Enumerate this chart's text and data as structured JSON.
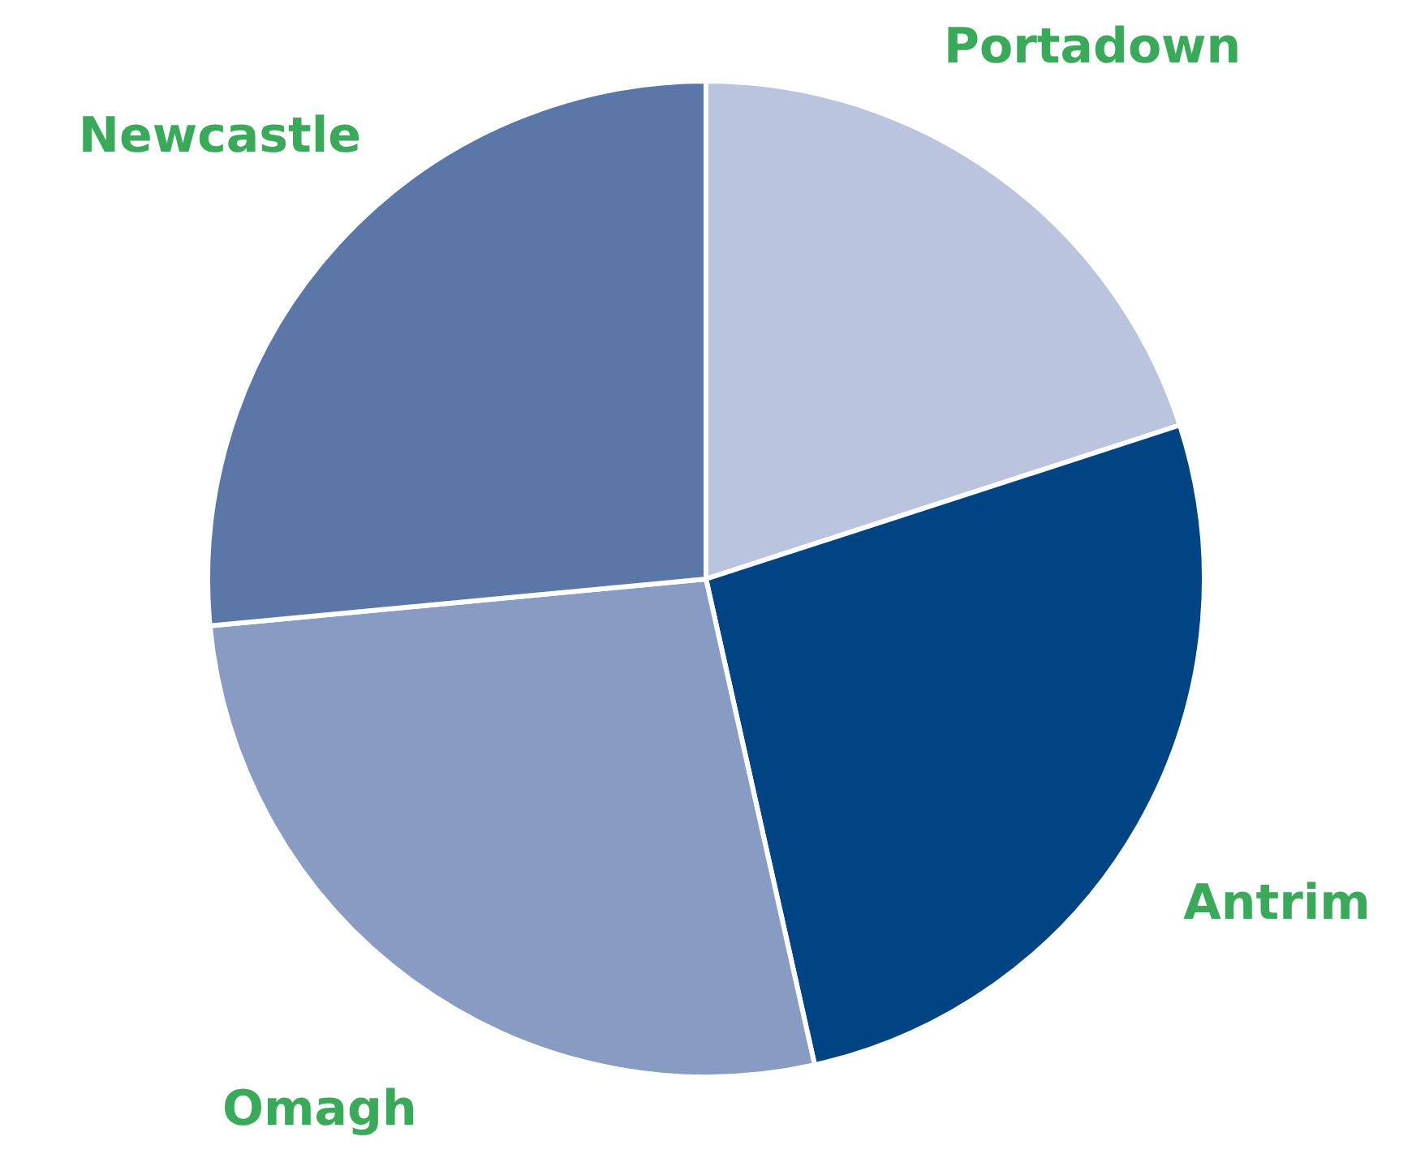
{
  "chart_data": {
    "type": "pie",
    "categories": [
      "Portadown",
      "Antrim",
      "Omagh",
      "Newcastle"
    ],
    "values": [
      20,
      26.5,
      27,
      26.5
    ],
    "colors": [
      "#bac4de",
      "#004483",
      "#889cc3",
      "#5a77a8"
    ],
    "legend": false
  }
}
